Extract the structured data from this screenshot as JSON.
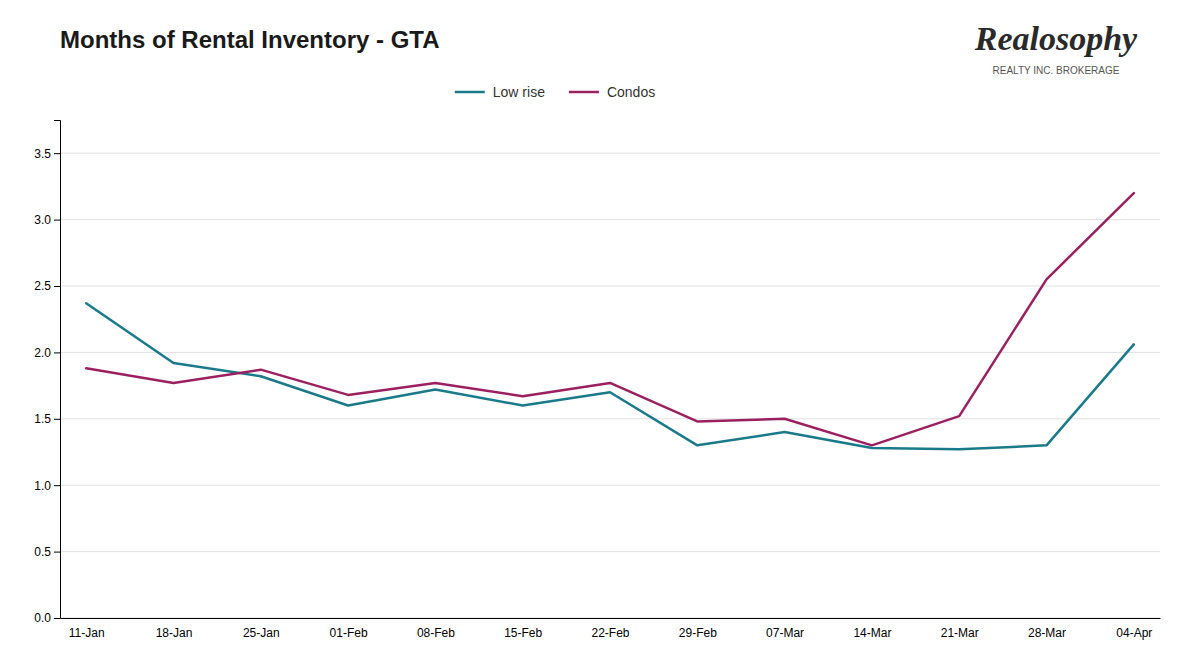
{
  "chart_data": {
    "type": "line",
    "title": "Months of Rental Inventory - GTA",
    "annotations": [
      "Realosophy",
      "REALTY INC. BROKERAGE"
    ],
    "categories": [
      "11-Jan",
      "18-Jan",
      "25-Jan",
      "01-Feb",
      "08-Feb",
      "15-Feb",
      "22-Feb",
      "29-Feb",
      "07-Mar",
      "14-Mar",
      "21-Mar",
      "28-Mar",
      "04-Apr"
    ],
    "series": [
      {
        "name": "Low rise",
        "color": "#1a7a8a",
        "values": [
          2.37,
          1.92,
          1.82,
          1.6,
          1.72,
          1.6,
          1.7,
          1.3,
          1.4,
          1.28,
          1.27,
          1.3,
          2.06
        ]
      },
      {
        "name": "Condos",
        "color": "#9b2060",
        "values": [
          1.88,
          1.77,
          1.87,
          1.68,
          1.77,
          1.67,
          1.77,
          1.48,
          1.5,
          1.3,
          1.52,
          2.55,
          3.2
        ]
      }
    ],
    "ylim": [
      0.0,
      3.75
    ],
    "yticks": [
      {
        "value": 0.0,
        "label": "0.0"
      },
      0.5,
      {
        "value": 1.0,
        "label": "1.0"
      },
      1.5,
      {
        "value": 2.0,
        "label": "2.0"
      },
      2.5,
      {
        "value": 3.0,
        "label": "3.0"
      },
      3.5
    ],
    "grid": true,
    "legend": "top"
  }
}
